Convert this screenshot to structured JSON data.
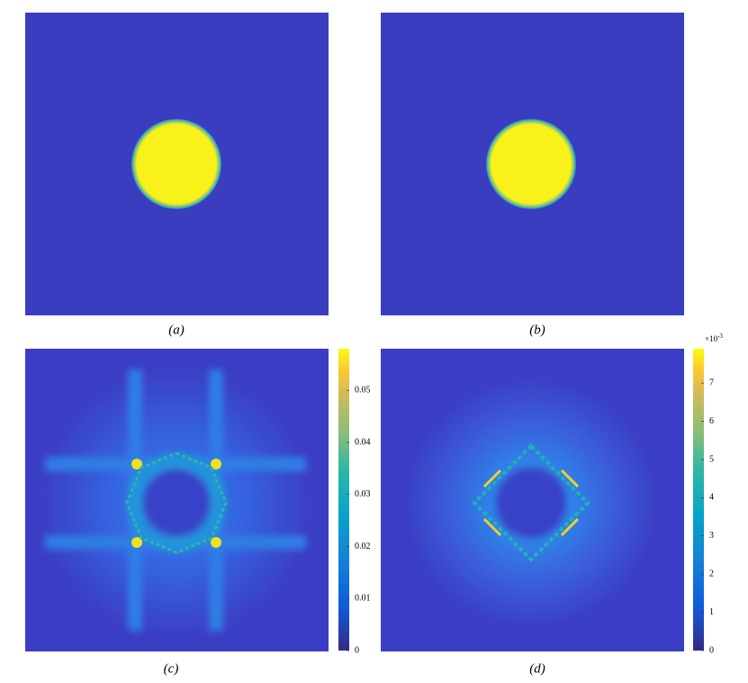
{
  "panels": [
    {
      "caption": "(a)"
    },
    {
      "caption": "(b)"
    },
    {
      "caption": "(c)",
      "colorbar": {
        "lim": [
          0,
          0.058
        ],
        "ticks": [
          0,
          0.01,
          0.02,
          0.03,
          0.04,
          0.05
        ]
      }
    },
    {
      "caption": "(d)",
      "colorbar": {
        "lim": [
          0,
          7.9
        ],
        "ticks": [
          0,
          1,
          2,
          3,
          4,
          5,
          6,
          7
        ],
        "multiplier": {
          "base": "×10",
          "exponent": "-3"
        }
      }
    }
  ]
}
